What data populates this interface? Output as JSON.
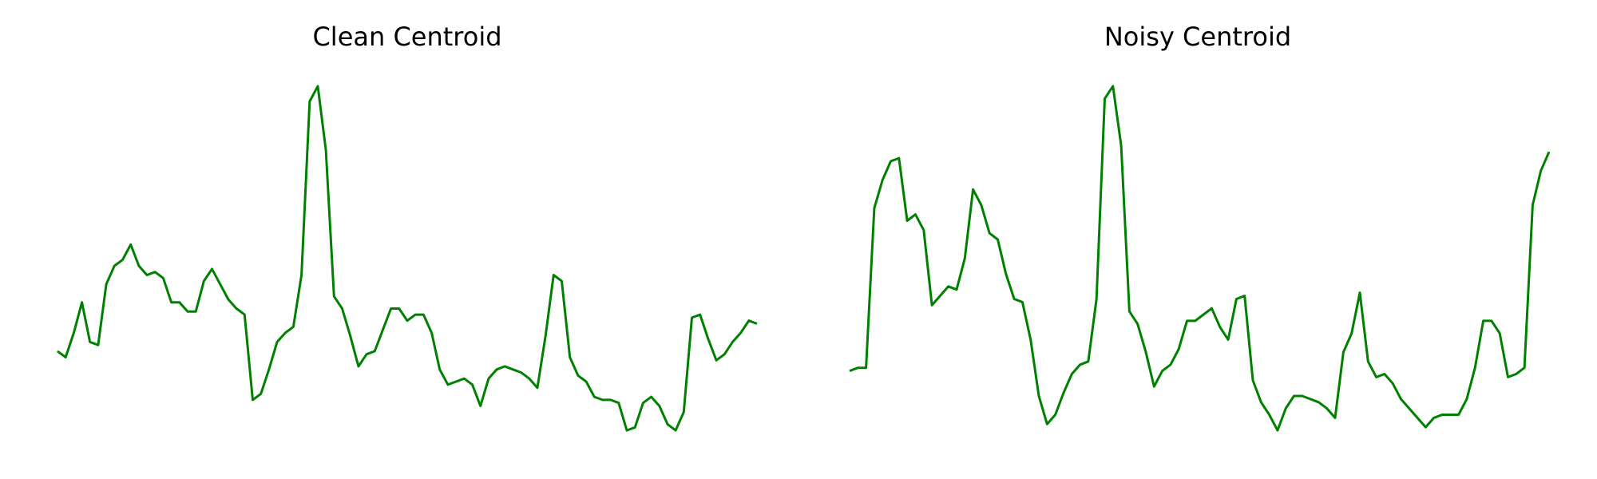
{
  "chart_data": [
    {
      "type": "line",
      "title": "Clean Centroid",
      "xlabel": "",
      "ylabel": "",
      "grid": false,
      "axes_visible": false,
      "color": "#008000",
      "series": [
        {
          "values": [
            0.08,
            0.06,
            0.14,
            0.24,
            0.11,
            0.1,
            0.3,
            0.36,
            0.38,
            0.43,
            0.36,
            0.33,
            0.34,
            0.32,
            0.24,
            0.24,
            0.21,
            0.21,
            0.31,
            0.35,
            0.3,
            0.25,
            0.22,
            0.2,
            -0.08,
            -0.06,
            0.02,
            0.11,
            0.14,
            0.16,
            0.33,
            0.9,
            0.95,
            0.74,
            0.26,
            0.22,
            0.13,
            0.03,
            0.07,
            0.08,
            0.15,
            0.22,
            0.22,
            0.18,
            0.2,
            0.2,
            0.14,
            0.02,
            -0.03,
            -0.02,
            -0.01,
            -0.03,
            -0.1,
            -0.01,
            0.02,
            0.03,
            0.02,
            0.01,
            -0.01,
            -0.04,
            0.13,
            0.33,
            0.31,
            0.06,
            0.0,
            -0.02,
            -0.07,
            -0.08,
            -0.08,
            -0.09,
            -0.18,
            -0.17,
            -0.09,
            -0.07,
            -0.1,
            -0.16,
            -0.18,
            -0.12,
            0.19,
            0.2,
            0.12,
            0.05,
            0.07,
            0.11,
            0.14,
            0.18,
            0.17
          ]
        }
      ]
    },
    {
      "type": "line",
      "title": "Noisy Centroid",
      "xlabel": "",
      "ylabel": "",
      "grid": false,
      "axes_visible": false,
      "color": "#008000",
      "series": [
        {
          "values": [
            0.04,
            0.05,
            0.05,
            0.56,
            0.65,
            0.71,
            0.72,
            0.52,
            0.54,
            0.49,
            0.25,
            0.28,
            0.31,
            0.3,
            0.4,
            0.62,
            0.57,
            0.48,
            0.46,
            0.35,
            0.27,
            0.26,
            0.14,
            -0.04,
            -0.13,
            -0.1,
            -0.03,
            0.03,
            0.06,
            0.07,
            0.27,
            0.91,
            0.95,
            0.76,
            0.23,
            0.19,
            0.1,
            -0.01,
            0.04,
            0.06,
            0.11,
            0.2,
            0.2,
            0.22,
            0.24,
            0.18,
            0.14,
            0.27,
            0.28,
            0.01,
            -0.06,
            -0.1,
            -0.15,
            -0.08,
            -0.04,
            -0.04,
            -0.05,
            -0.06,
            -0.08,
            -0.11,
            0.1,
            0.16,
            0.29,
            0.07,
            0.02,
            0.03,
            0.0,
            -0.05,
            -0.08,
            -0.11,
            -0.14,
            -0.11,
            -0.1,
            -0.1,
            -0.1,
            -0.05,
            0.05,
            0.2,
            0.2,
            0.16,
            0.02,
            0.03,
            0.05,
            0.57,
            0.68,
            0.74
          ]
        }
      ]
    }
  ]
}
